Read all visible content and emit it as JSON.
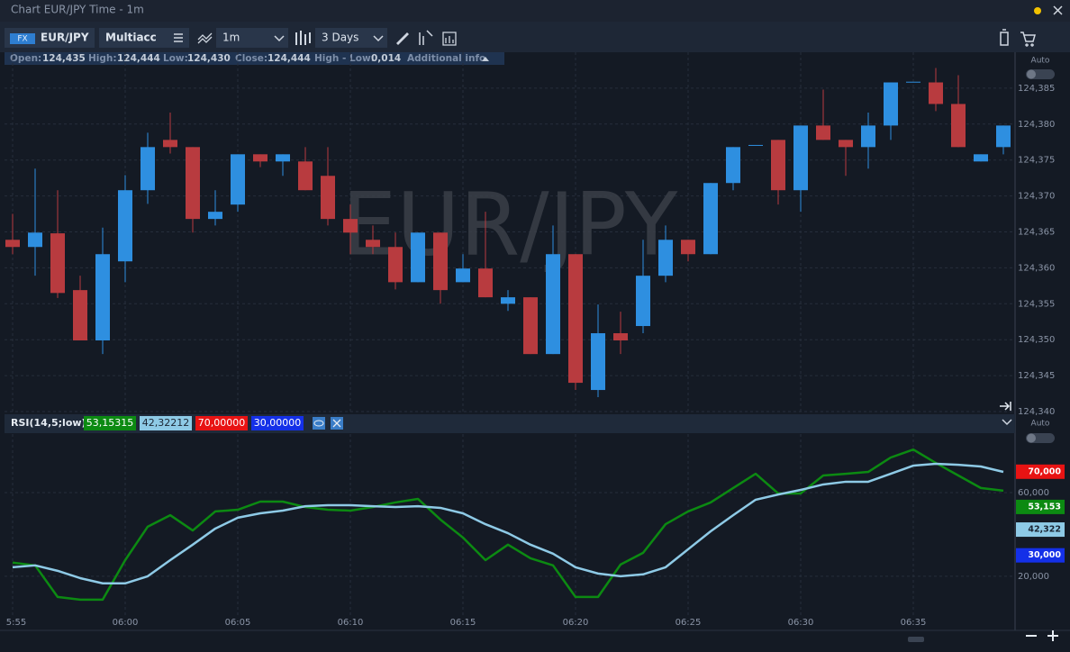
{
  "window": {
    "title": "Chart EUR/JPY Time - 1m"
  },
  "toolbar": {
    "badge": "FX",
    "symbol": "EUR/JPY",
    "account": "Multiacc",
    "interval": "1m",
    "range": "3 Days"
  },
  "info_bar": {
    "items": [
      {
        "label": "Open:",
        "value": "124,435"
      },
      {
        "label": "High:",
        "value": "124,444"
      },
      {
        "label": "Low:",
        "value": "124,430"
      },
      {
        "label": "Close:",
        "value": "124,444"
      },
      {
        "label": "High - Low:",
        "value": "0,014"
      }
    ],
    "more": "Additional info"
  },
  "chart_data": [
    {
      "type": "candlestick",
      "watermark": "EUR/JPY",
      "auto_label": "Auto",
      "grid": true,
      "up_color": "#2e8fe0",
      "down_color": "#b83b3f",
      "x": [
        "5:55",
        null,
        null,
        null,
        null,
        "06:00",
        null,
        null,
        null,
        null,
        "06:05",
        null,
        null,
        null,
        null,
        "06:10",
        null,
        null,
        null,
        null,
        "06:15",
        null,
        null,
        null,
        null,
        "06:20",
        null,
        null,
        null,
        null,
        "06:25",
        null,
        null,
        null,
        null,
        "06:30",
        null,
        null,
        null,
        null,
        "06:35",
        null,
        null,
        null,
        null
      ],
      "open": [
        124.3639,
        124.3629,
        124.3648,
        124.3569,
        124.3499,
        124.3609,
        124.3708,
        124.3778,
        124.3768,
        124.3668,
        124.3688,
        124.3758,
        124.3748,
        124.3748,
        124.3728,
        124.3668,
        124.3639,
        124.3629,
        124.358,
        124.3649,
        124.358,
        124.3599,
        124.355,
        124.3559,
        124.348,
        124.3619,
        124.343,
        124.3509,
        124.3519,
        124.3589,
        124.3639,
        124.3619,
        124.3718,
        124.3771,
        124.3778,
        124.3708,
        124.3798,
        124.3778,
        124.3768,
        124.3798,
        124.3859,
        124.3858,
        124.3828,
        124.3748,
        124.3768
      ],
      "high": [
        124.3675,
        124.3738,
        124.3708,
        124.3589,
        124.3656,
        124.3729,
        124.3788,
        124.3816,
        124.3768,
        124.3708,
        124.3758,
        124.3758,
        124.3758,
        124.3768,
        124.3768,
        124.3688,
        124.3659,
        124.3649,
        124.3649,
        124.3649,
        124.3619,
        124.3678,
        124.3569,
        124.3559,
        124.3659,
        124.3619,
        124.3549,
        124.3539,
        124.3639,
        124.3659,
        124.3639,
        124.3718,
        124.3768,
        124.3771,
        124.3778,
        124.3798,
        124.3848,
        124.3778,
        124.3816,
        124.3858,
        124.3859,
        124.3878,
        124.3868,
        124.3758,
        124.3798
      ],
      "low": [
        124.3619,
        124.3589,
        124.3558,
        124.3499,
        124.348,
        124.358,
        124.3689,
        124.3759,
        124.3649,
        124.3659,
        124.3678,
        124.374,
        124.3728,
        124.3708,
        124.3659,
        124.3619,
        124.3619,
        124.357,
        124.358,
        124.355,
        124.358,
        124.3559,
        124.354,
        124.348,
        124.348,
        124.343,
        124.342,
        124.348,
        124.3509,
        124.358,
        124.3609,
        124.3619,
        124.3708,
        124.3771,
        124.3688,
        124.3678,
        124.3778,
        124.3728,
        124.3738,
        124.3778,
        124.3859,
        124.3818,
        124.3768,
        124.3748,
        124.3758
      ],
      "close": [
        124.3629,
        124.3649,
        124.3565,
        124.3499,
        124.3619,
        124.3708,
        124.3768,
        124.3768,
        124.3668,
        124.3678,
        124.3758,
        124.3748,
        124.3758,
        124.3708,
        124.3668,
        124.3649,
        124.3629,
        124.358,
        124.3649,
        124.3569,
        124.3599,
        124.3559,
        124.3559,
        124.348,
        124.3619,
        124.344,
        124.3509,
        124.3499,
        124.3589,
        124.3639,
        124.3619,
        124.3718,
        124.3768,
        124.3771,
        124.3708,
        124.3798,
        124.3778,
        124.3768,
        124.3798,
        124.3858,
        124.3859,
        124.3828,
        124.3768,
        124.3758,
        124.3798
      ],
      "ylim": [
        124.34,
        124.39
      ],
      "yticks": [
        {
          "value": 124.34,
          "label": "124,340"
        },
        {
          "value": 124.345,
          "label": "124,345"
        },
        {
          "value": 124.35,
          "label": "124,350"
        },
        {
          "value": 124.355,
          "label": "124,355"
        },
        {
          "value": 124.36,
          "label": "124,360"
        },
        {
          "value": 124.365,
          "label": "124,365"
        },
        {
          "value": 124.37,
          "label": "124,370"
        },
        {
          "value": 124.375,
          "label": "124,375"
        },
        {
          "value": 124.38,
          "label": "124,380"
        },
        {
          "value": 124.385,
          "label": "124,385"
        }
      ]
    },
    {
      "type": "line",
      "title": "RSI(14,5;low)",
      "auto_label": "Auto",
      "grid": true,
      "series": [
        {
          "color": "#0c8a12",
          "legend_label": "53,15315",
          "tag_value": 53.153,
          "tag_label": "53,153",
          "values": [
            26.5,
            25.2,
            10.1,
            8.8,
            8.8,
            27.7,
            43.7,
            49.2,
            41.9,
            51.0,
            51.8,
            55.7,
            55.7,
            53.1,
            51.8,
            51.4,
            53.1,
            55.3,
            57.0,
            47.1,
            38.5,
            27.7,
            35.1,
            28.6,
            25.2,
            10.1,
            10.1,
            25.6,
            31.2,
            44.9,
            51.0,
            55.3,
            62.2,
            69.0,
            59.6,
            59.6,
            68.2,
            69.0,
            69.9,
            76.8,
            80.6,
            74.2,
            68.2,
            62.2,
            60.9
          ]
        },
        {
          "color": "#8ecae6",
          "legend_label": "42,32212",
          "tag_value": 42.322,
          "tag_label": "42,322",
          "values": [
            24.3,
            25.2,
            22.6,
            19.1,
            16.6,
            16.6,
            20.0,
            27.7,
            35.1,
            42.8,
            48.0,
            50.1,
            51.4,
            53.5,
            54.0,
            54.0,
            53.5,
            53.1,
            53.5,
            52.7,
            50.1,
            44.9,
            40.6,
            35.1,
            30.8,
            24.3,
            21.3,
            20.0,
            20.9,
            24.3,
            32.9,
            41.5,
            49.2,
            56.6,
            59.1,
            61.3,
            63.9,
            65.2,
            65.2,
            69.0,
            72.9,
            73.8,
            73.3,
            72.5,
            69.9
          ]
        }
      ],
      "levels": [
        {
          "value": 70,
          "label": "70,000",
          "legend_label": "70,00000",
          "color": "#e81313"
        },
        {
          "value": 30,
          "label": "30,000",
          "legend_label": "30,00000",
          "color": "#1430e8"
        }
      ],
      "ylim": [
        1,
        88
      ],
      "yticks": [
        {
          "value": 20,
          "label": "20,000"
        },
        {
          "value": 60,
          "label": "60,000"
        }
      ]
    }
  ]
}
